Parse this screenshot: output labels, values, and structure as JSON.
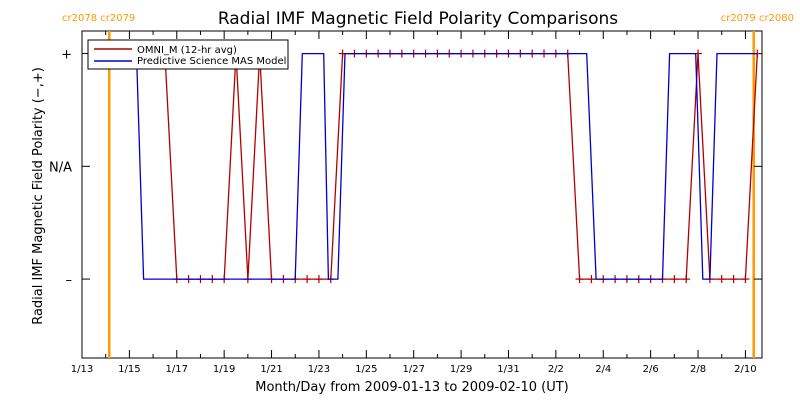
{
  "chart_data": {
    "type": "line",
    "title": "Radial IMF Magnetic Field Polarity Comparisons",
    "xlabel": "Month/Day from 2009-01-13 to 2009-02-10 (UT)",
    "ylabel": "Radial IMF Magnetic Field Polarity (−,+)",
    "x_unit": "days since 2009-01-13 00:00 UT",
    "xlim": [
      0,
      28.7
    ],
    "ylim": [
      -1.7,
      1.2
    ],
    "x_ticks": [
      {
        "day": 0,
        "label": "1/13"
      },
      {
        "day": 2,
        "label": "1/15"
      },
      {
        "day": 4,
        "label": "1/17"
      },
      {
        "day": 6,
        "label": "1/19"
      },
      {
        "day": 8,
        "label": "1/21"
      },
      {
        "day": 10,
        "label": "1/23"
      },
      {
        "day": 12,
        "label": "1/25"
      },
      {
        "day": 14,
        "label": "1/27"
      },
      {
        "day": 16,
        "label": "1/29"
      },
      {
        "day": 18,
        "label": "1/31"
      },
      {
        "day": 20,
        "label": "2/2"
      },
      {
        "day": 22,
        "label": "2/4"
      },
      {
        "day": 24,
        "label": "2/6"
      },
      {
        "day": 26,
        "label": "2/8"
      },
      {
        "day": 28,
        "label": "2/10"
      }
    ],
    "y_ticks": [
      {
        "value": 1,
        "label": "+"
      },
      {
        "value": 0,
        "label": "N/A"
      },
      {
        "value": -1,
        "label": "–"
      }
    ],
    "carrington_markers": [
      {
        "day": 1.15,
        "label": "cr2078 cr2079",
        "side": "left"
      },
      {
        "day": 28.35,
        "label": "cr2079 cr2080",
        "side": "right"
      }
    ],
    "marker_color": "#ff9900",
    "legend_position": "top-left",
    "series": [
      {
        "name": "OMNI_M (12-hr avg)",
        "color": "#b20000",
        "marker": "plus",
        "points": [
          [
            1.0,
            1
          ],
          [
            1.5,
            1
          ],
          [
            2.0,
            1
          ],
          [
            2.5,
            1
          ],
          [
            3.0,
            1
          ],
          [
            3.5,
            1
          ],
          [
            4.0,
            -1
          ],
          [
            4.5,
            -1
          ],
          [
            5.0,
            -1
          ],
          [
            5.5,
            -1
          ],
          [
            6.0,
            -1
          ],
          [
            6.5,
            1
          ],
          [
            7.0,
            -1
          ],
          [
            7.5,
            1
          ],
          [
            8.0,
            -1
          ],
          [
            8.5,
            -1
          ],
          [
            9.0,
            -1
          ],
          [
            9.5,
            -1
          ],
          [
            10.0,
            -1
          ],
          [
            10.5,
            -1
          ],
          [
            11.0,
            1
          ],
          [
            11.5,
            1
          ],
          [
            12.0,
            1
          ],
          [
            12.5,
            1
          ],
          [
            13.0,
            1
          ],
          [
            13.5,
            1
          ],
          [
            14.0,
            1
          ],
          [
            14.5,
            1
          ],
          [
            15.0,
            1
          ],
          [
            15.5,
            1
          ],
          [
            16.0,
            1
          ],
          [
            16.5,
            1
          ],
          [
            17.0,
            1
          ],
          [
            17.5,
            1
          ],
          [
            18.0,
            1
          ],
          [
            18.5,
            1
          ],
          [
            19.0,
            1
          ],
          [
            19.5,
            1
          ],
          [
            20.0,
            1
          ],
          [
            20.5,
            1
          ],
          [
            21.0,
            -1
          ],
          [
            21.5,
            -1
          ],
          [
            22.0,
            -1
          ],
          [
            22.5,
            -1
          ],
          [
            23.0,
            -1
          ],
          [
            23.5,
            -1
          ],
          [
            24.0,
            -1
          ],
          [
            24.5,
            -1
          ],
          [
            25.0,
            -1
          ],
          [
            25.5,
            -1
          ],
          [
            26.0,
            1
          ],
          [
            26.5,
            -1
          ],
          [
            27.0,
            -1
          ],
          [
            27.5,
            -1
          ],
          [
            28.0,
            -1
          ],
          [
            28.5,
            1
          ]
        ]
      },
      {
        "name": "Predictive Science MAS Model",
        "color": "#0000cc",
        "marker": "none",
        "points": [
          [
            1.0,
            1
          ],
          [
            2.3,
            1
          ],
          [
            2.6,
            -1
          ],
          [
            9.0,
            -1
          ],
          [
            9.3,
            1
          ],
          [
            10.2,
            1
          ],
          [
            10.4,
            -1
          ],
          [
            10.8,
            -1
          ],
          [
            11.1,
            1
          ],
          [
            21.3,
            1
          ],
          [
            21.7,
            -1
          ],
          [
            24.5,
            -1
          ],
          [
            24.8,
            1
          ],
          [
            25.9,
            1
          ],
          [
            26.2,
            -1
          ],
          [
            26.5,
            -1
          ],
          [
            26.8,
            1
          ],
          [
            28.5,
            1
          ]
        ]
      }
    ]
  }
}
